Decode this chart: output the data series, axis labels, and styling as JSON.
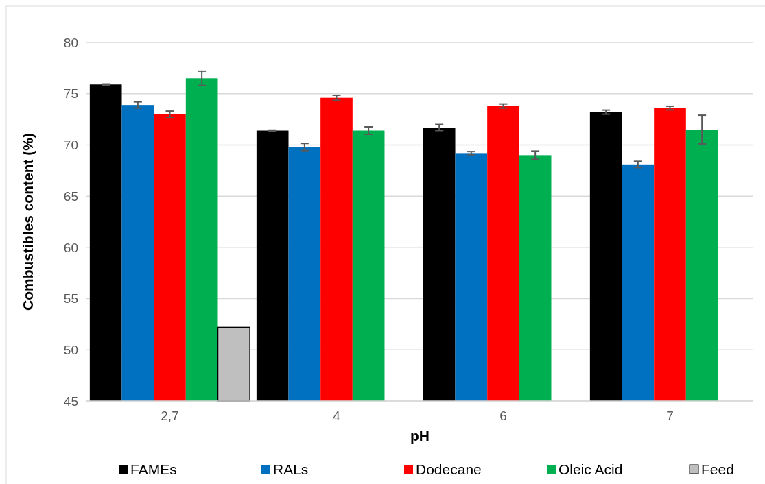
{
  "chart_data": {
    "type": "bar",
    "xlabel": "pH",
    "ylabel": "Combustibles content (%)",
    "categories": [
      "2,7",
      "4",
      "6",
      "7"
    ],
    "ylim": [
      45,
      80
    ],
    "yticks": [
      45,
      50,
      55,
      60,
      65,
      70,
      75,
      80
    ],
    "grid": "y",
    "legend": "bottom",
    "series": [
      {
        "name": "FAMEs",
        "color": "#000000",
        "values": [
          75.9,
          71.4,
          71.7,
          73.2
        ],
        "errors": [
          0.05,
          0.05,
          0.3,
          0.2
        ]
      },
      {
        "name": "RALs",
        "color": "#0070c0",
        "values": [
          73.9,
          69.8,
          69.2,
          68.1
        ],
        "errors": [
          0.3,
          0.35,
          0.15,
          0.3
        ]
      },
      {
        "name": "Dodecane",
        "color": "#ff0000",
        "values": [
          73.0,
          74.6,
          73.8,
          73.6
        ],
        "errors": [
          0.3,
          0.25,
          0.2,
          0.18
        ]
      },
      {
        "name": "Oleic Acid",
        "color": "#00b050",
        "values": [
          76.5,
          71.4,
          69.0,
          71.5
        ],
        "errors": [
          0.7,
          0.37,
          0.4,
          1.4
        ]
      },
      {
        "name": "Feed",
        "color": "#bfbfbf",
        "values": [
          52.2,
          null,
          null,
          null
        ]
      }
    ]
  }
}
